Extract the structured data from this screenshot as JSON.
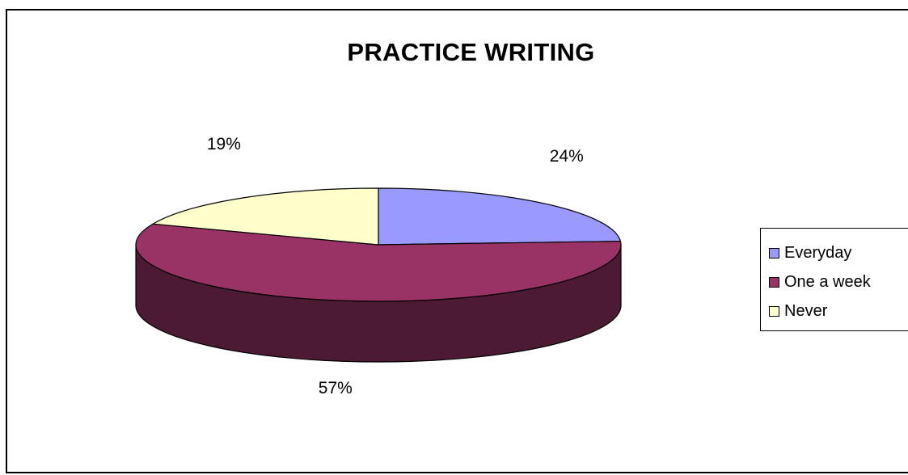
{
  "chart_data": {
    "type": "pie",
    "title": "PRACTICE WRITING",
    "categories": [
      "Everyday",
      "One a week",
      "Never"
    ],
    "values": [
      24,
      57,
      19
    ],
    "data_labels": [
      "24%",
      "57%",
      "19%"
    ],
    "colors": [
      "#9999ff",
      "#993366",
      "#ffffcc"
    ],
    "side_color": "#4d1a33",
    "legend_position": "right",
    "style": "3d"
  }
}
